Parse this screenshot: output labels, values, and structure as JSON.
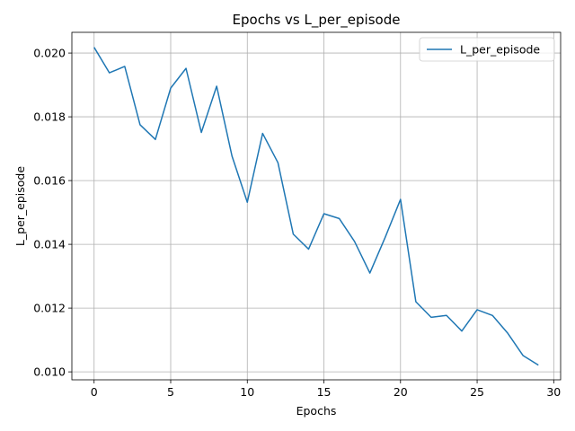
{
  "chart_data": {
    "type": "line",
    "title": "Epochs vs L_per_episode",
    "xlabel": "Epochs",
    "ylabel": "L_per_episode",
    "xlim": [
      -1.45,
      30.45
    ],
    "ylim": [
      0.00975,
      0.02065
    ],
    "xticks": [
      0,
      5,
      10,
      15,
      20,
      25,
      30
    ],
    "xtick_labels": [
      "0",
      "5",
      "10",
      "15",
      "20",
      "25",
      "30"
    ],
    "yticks": [
      0.01,
      0.012,
      0.014,
      0.016,
      0.018,
      0.02
    ],
    "ytick_labels": [
      "0.010",
      "0.012",
      "0.014",
      "0.016",
      "0.018",
      "0.020"
    ],
    "grid": true,
    "legend_position": "top-right",
    "series": [
      {
        "name": "L_per_episode",
        "color": "#1f77b4",
        "x": [
          0,
          1,
          2,
          3,
          4,
          5,
          6,
          7,
          8,
          9,
          10,
          11,
          12,
          13,
          14,
          15,
          16,
          17,
          18,
          19,
          20,
          21,
          22,
          23,
          24,
          25,
          26,
          27,
          28,
          29
        ],
        "values": [
          0.02018,
          0.01938,
          0.01958,
          0.01775,
          0.01729,
          0.0189,
          0.01952,
          0.01751,
          0.01896,
          0.01677,
          0.01532,
          0.01748,
          0.01656,
          0.01432,
          0.01385,
          0.01496,
          0.01481,
          0.01409,
          0.0131,
          0.01422,
          0.01541,
          0.0122,
          0.01171,
          0.01177,
          0.01128,
          0.01195,
          0.01177,
          0.01121,
          0.01051,
          0.01021
        ]
      }
    ]
  }
}
